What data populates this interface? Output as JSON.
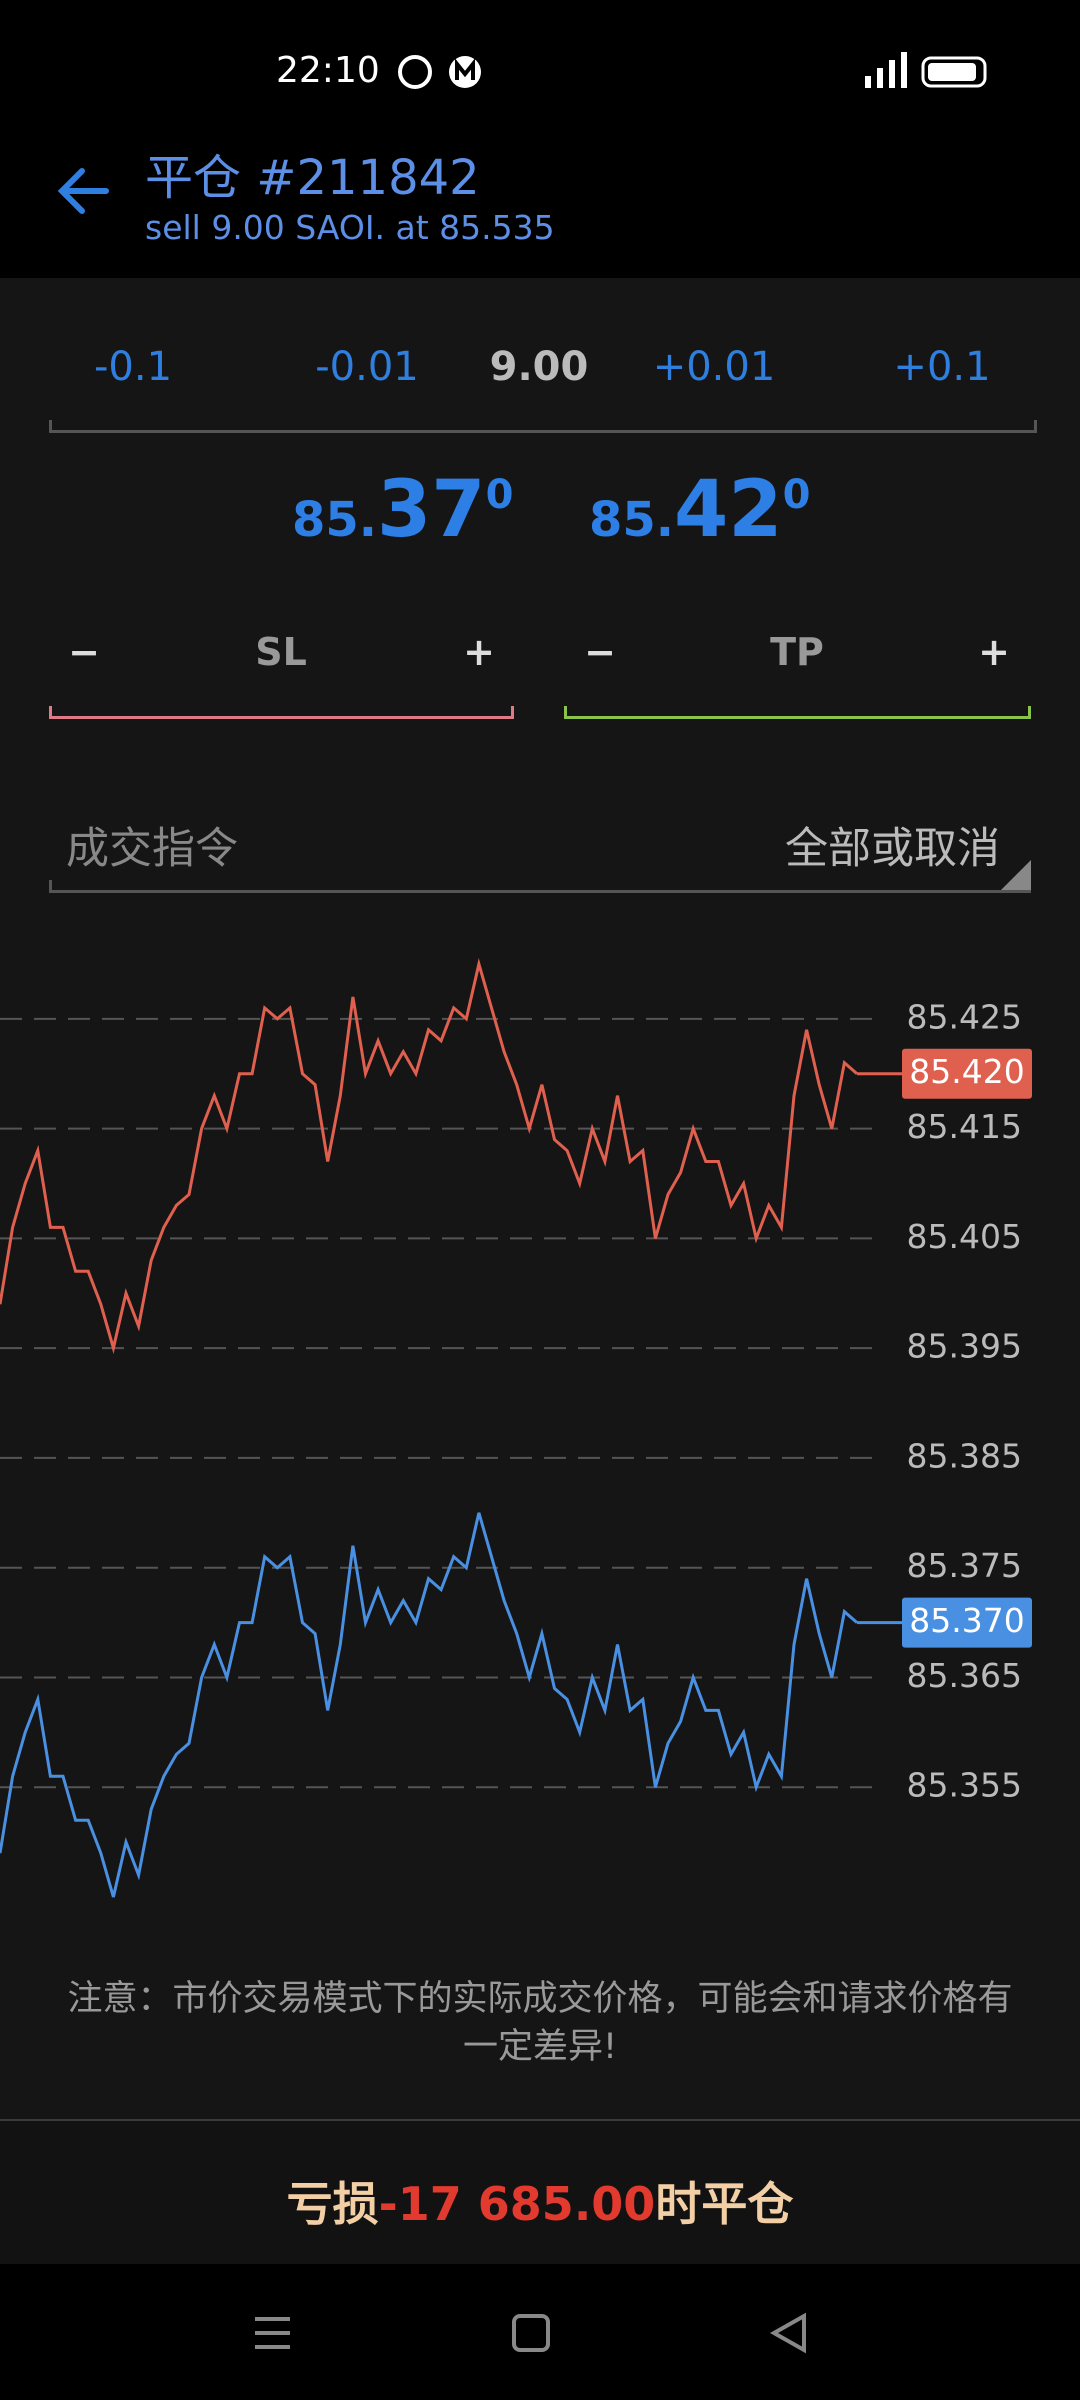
{
  "status_bar": {
    "time": "22:10"
  },
  "header": {
    "title": "平仓 #211842",
    "subtitle": "sell 9.00 SAOI. at 85.535"
  },
  "volume": {
    "minus_large": "-0.1",
    "minus_small": "-0.01",
    "value": "9.00",
    "plus_small": "+0.01",
    "plus_large": "+0.1"
  },
  "prices": [
    {
      "prefix": "85.",
      "main": "37",
      "tail": "0"
    },
    {
      "prefix": "85.",
      "main": "42",
      "tail": "0"
    }
  ],
  "levels": [
    {
      "minus": "−",
      "label": "SL",
      "plus": "+"
    },
    {
      "minus": "−",
      "label": "TP",
      "plus": "+"
    }
  ],
  "fill_policy": {
    "label": "成交指令",
    "value": "全部或取消"
  },
  "chart": {
    "type": "line",
    "ylim": [
      85.345,
      85.432
    ],
    "yticks": [
      85.425,
      85.415,
      85.405,
      85.395,
      85.385,
      85.375,
      85.365,
      85.355
    ],
    "grid": true,
    "series": [
      {
        "color": "#e0604f",
        "current": {
          "value": 85.42,
          "label": "85.420"
        },
        "values": [
          85.399,
          85.406,
          85.41,
          85.413,
          85.406,
          85.406,
          85.402,
          85.402,
          85.399,
          85.395,
          85.4,
          85.397,
          85.403,
          85.406,
          85.408,
          85.409,
          85.415,
          85.418,
          85.415,
          85.42,
          85.42,
          85.426,
          85.425,
          85.426,
          85.42,
          85.419,
          85.412,
          85.418,
          85.427,
          85.42,
          85.423,
          85.42,
          85.422,
          85.42,
          85.424,
          85.423,
          85.426,
          85.425,
          85.43,
          85.426,
          85.422,
          85.419,
          85.415,
          85.419,
          85.414,
          85.413,
          85.41,
          85.415,
          85.412,
          85.418,
          85.412,
          85.413,
          85.405,
          85.409,
          85.411,
          85.415,
          85.412,
          85.412,
          85.408,
          85.41,
          85.405,
          85.408,
          85.406,
          85.418,
          85.424,
          85.419,
          85.415,
          85.421,
          85.42
        ]
      },
      {
        "color": "#4a90e2",
        "current": {
          "value": 85.37,
          "label": "85.370"
        },
        "values": [
          85.349,
          85.356,
          85.36,
          85.363,
          85.356,
          85.356,
          85.352,
          85.352,
          85.349,
          85.345,
          85.35,
          85.347,
          85.353,
          85.356,
          85.358,
          85.359,
          85.365,
          85.368,
          85.365,
          85.37,
          85.37,
          85.376,
          85.375,
          85.376,
          85.37,
          85.369,
          85.362,
          85.368,
          85.377,
          85.37,
          85.373,
          85.37,
          85.372,
          85.37,
          85.374,
          85.373,
          85.376,
          85.375,
          85.38,
          85.376,
          85.372,
          85.369,
          85.365,
          85.369,
          85.364,
          85.363,
          85.36,
          85.365,
          85.362,
          85.368,
          85.362,
          85.363,
          85.355,
          85.359,
          85.361,
          85.365,
          85.362,
          85.362,
          85.358,
          85.36,
          85.355,
          85.358,
          85.356,
          85.368,
          85.374,
          85.369,
          85.365,
          85.371,
          85.37
        ]
      }
    ]
  },
  "note": "注意：市价交易模式下的实际成交价格，可能会和请求价格有一定差异!",
  "action": {
    "prefix": "亏损",
    "amount": "-17 685.00",
    "suffix": "时平仓"
  }
}
